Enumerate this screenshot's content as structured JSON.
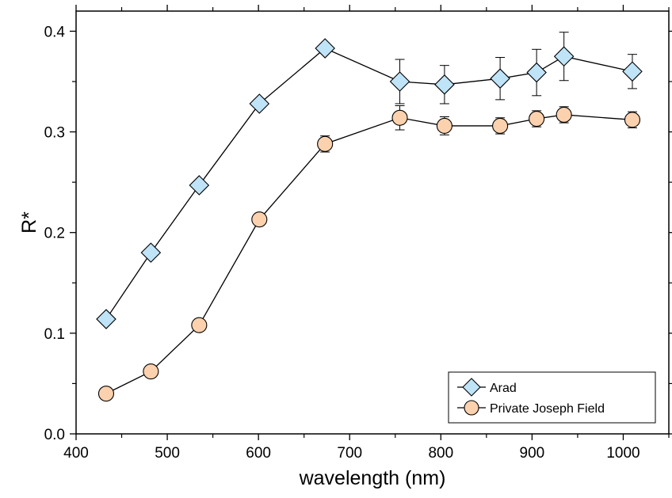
{
  "chart_data": {
    "type": "scatter",
    "xlabel": "wavelength (nm)",
    "ylabel": "R*",
    "xlim": [
      400,
      1050
    ],
    "ylim": [
      0.0,
      0.42
    ],
    "x_ticks": [
      400,
      500,
      600,
      700,
      800,
      900,
      1000
    ],
    "y_ticks": [
      0.0,
      0.1,
      0.2,
      0.3,
      0.4
    ],
    "x_tick_labels": [
      "400",
      "500",
      "600",
      "700",
      "800",
      "900",
      "1000"
    ],
    "y_tick_labels": [
      "0.0",
      "0.1",
      "0.2",
      "0.3",
      "0.4"
    ],
    "grid": false,
    "legend_position": "bottom-right",
    "series": [
      {
        "name": "Arad",
        "marker": "diamond",
        "color": "#bfe3f7",
        "x": [
          433,
          482,
          535,
          601,
          673,
          755,
          804,
          865,
          905,
          935,
          1010
        ],
        "y": [
          0.114,
          0.18,
          0.247,
          0.328,
          0.383,
          0.35,
          0.347,
          0.353,
          0.359,
          0.375,
          0.36
        ],
        "err": [
          0,
          0,
          0,
          0,
          0,
          0.022,
          0.019,
          0.021,
          0.023,
          0.024,
          0.017
        ]
      },
      {
        "name": "Private Joseph Field",
        "marker": "circle",
        "color": "#fbd1ae",
        "x": [
          433,
          482,
          535,
          601,
          673,
          755,
          804,
          865,
          905,
          935,
          1010
        ],
        "y": [
          0.04,
          0.062,
          0.108,
          0.213,
          0.288,
          0.314,
          0.306,
          0.306,
          0.313,
          0.317,
          0.312
        ],
        "err": [
          0,
          0,
          0,
          0,
          0.008,
          0.012,
          0.009,
          0.008,
          0.008,
          0.008,
          0.008
        ]
      }
    ]
  }
}
